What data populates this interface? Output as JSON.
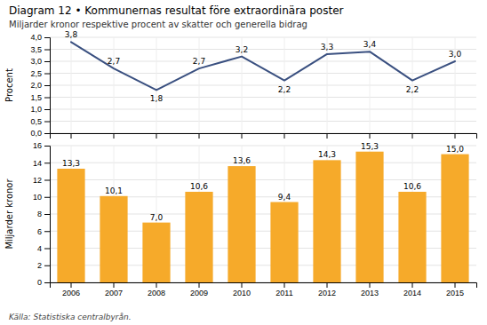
{
  "chart_data": [
    {
      "type": "line",
      "title": "Diagram 12 • Kommunernas resultat före extraordinära poster",
      "subtitle": "Miljarder kronor respektive procent av skatter och generella bidrag",
      "categories": [
        2006,
        2007,
        2008,
        2009,
        2010,
        2011,
        2012,
        2013,
        2014,
        2015
      ],
      "values": [
        3.8,
        2.7,
        1.8,
        2.7,
        3.2,
        2.2,
        3.3,
        3.4,
        2.2,
        3.0
      ],
      "value_labels": [
        "3,8",
        "2,7",
        "1,8",
        "2,7",
        "3,2",
        "2,2",
        "3,3",
        "3,4",
        "2,2",
        "3,0"
      ],
      "color": "#3a5080",
      "ylabel": "Procent",
      "ylim": [
        0.0,
        4.0
      ],
      "yticks": [
        {
          "value": 0.0,
          "label": "0,0"
        },
        {
          "value": 0.5,
          "label": "0,5"
        },
        {
          "value": 1.0,
          "label": "1,0"
        },
        {
          "value": 1.5,
          "label": "1,5"
        },
        {
          "value": 2.0,
          "label": "2,0"
        },
        {
          "value": 2.5,
          "label": "2,5"
        },
        {
          "value": 3.0,
          "label": "3,0"
        },
        {
          "value": 3.5,
          "label": "3,5"
        },
        {
          "value": 4.0,
          "label": "4,0"
        }
      ],
      "grid": true,
      "data_labels": true,
      "tick_labels": "y"
    },
    {
      "type": "bar",
      "categories": [
        2006,
        2007,
        2008,
        2009,
        2010,
        2011,
        2012,
        2013,
        2014,
        2015
      ],
      "values": [
        13.3,
        10.1,
        7.0,
        10.6,
        13.6,
        9.4,
        14.3,
        15.3,
        10.6,
        15.0
      ],
      "value_labels": [
        "13,3",
        "10,1",
        "7,0",
        "10,6",
        "13,6",
        "9,4",
        "14,3",
        "15,3",
        "10,6",
        "15,0"
      ],
      "color": "#f6aa2a",
      "ylabel": "Miljarder kronor",
      "ylim": [
        0,
        16
      ],
      "yticks": [
        0,
        2,
        4,
        6,
        8,
        10,
        12,
        14,
        16
      ],
      "grid": true,
      "data_labels": true,
      "source": "Källa: Statistiska centralbyrån."
    }
  ]
}
